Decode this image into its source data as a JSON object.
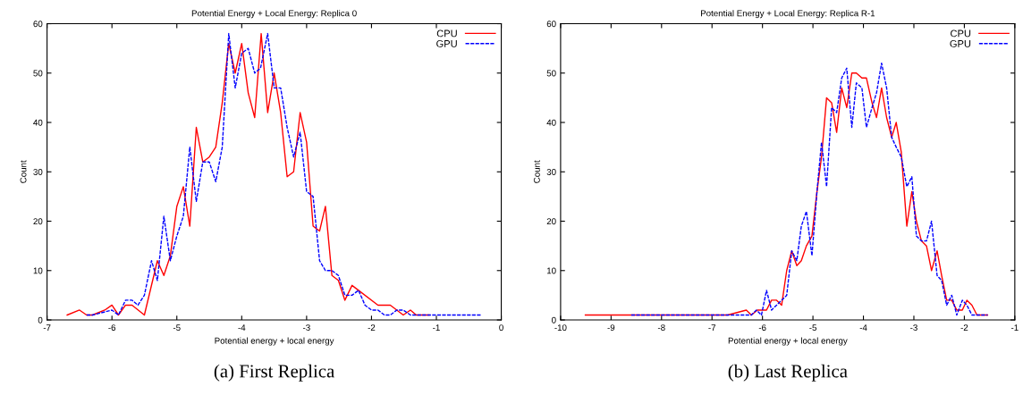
{
  "chart_data": [
    {
      "type": "line",
      "title": "Potential Energy + Local Energy: Replica 0",
      "xlabel": "Potential energy + local energy",
      "ylabel": "Count",
      "xlim": [
        -7,
        0
      ],
      "xticks": [
        -7,
        -6,
        -5,
        -4,
        -3,
        -2,
        -1,
        0
      ],
      "ylim": [
        0,
        60
      ],
      "yticks": [
        0,
        10,
        20,
        30,
        40,
        50,
        60
      ],
      "grid": false,
      "legend": "top right",
      "annotations": [
        "(a) First Replica"
      ],
      "series": [
        {
          "name": "CPU",
          "color": "#ff0000",
          "line_style": "solid",
          "x": [
            -6.69,
            -6.5,
            -6.39,
            -6.3,
            -6.11,
            -6.0,
            -5.9,
            -5.79,
            -5.69,
            -5.5,
            -5.3,
            -5.2,
            -5.1,
            -5.0,
            -4.9,
            -4.8,
            -4.7,
            -4.6,
            -4.5,
            -4.4,
            -4.3,
            -4.2,
            -4.1,
            -4.0,
            -3.9,
            -3.8,
            -3.7,
            -3.6,
            -3.5,
            -3.4,
            -3.3,
            -3.2,
            -3.1,
            -3.0,
            -2.9,
            -2.8,
            -2.71,
            -2.61,
            -2.51,
            -2.41,
            -2.3,
            -2.2,
            -1.9,
            -1.71,
            -1.51,
            -1.4,
            -1.31,
            -1.11
          ],
          "values": [
            1,
            2,
            1,
            1,
            2,
            3,
            1,
            3,
            3,
            1,
            12,
            9,
            13,
            23,
            27,
            19,
            39,
            32,
            33,
            35,
            44,
            56,
            50,
            56,
            46,
            41,
            58,
            42,
            50,
            42,
            29,
            30,
            42,
            36,
            19,
            18,
            23,
            9,
            8,
            4,
            7,
            6,
            3,
            3,
            1,
            2,
            1,
            1
          ]
        },
        {
          "name": "GPU",
          "color": "#0000ff",
          "line_style": "dashed",
          "x": [
            -6.39,
            -6.3,
            -6.0,
            -5.9,
            -5.79,
            -5.69,
            -5.6,
            -5.5,
            -5.39,
            -5.3,
            -5.2,
            -5.1,
            -5.0,
            -4.9,
            -4.8,
            -4.7,
            -4.6,
            -4.5,
            -4.4,
            -4.3,
            -4.2,
            -4.1,
            -4.0,
            -3.9,
            -3.8,
            -3.71,
            -3.6,
            -3.5,
            -3.4,
            -3.3,
            -3.2,
            -3.1,
            -3.0,
            -2.9,
            -2.8,
            -2.71,
            -2.61,
            -2.51,
            -2.41,
            -2.3,
            -2.2,
            -2.1,
            -2.0,
            -1.9,
            -1.8,
            -1.71,
            -1.61,
            -1.51,
            -1.4,
            -1.31,
            -0.31
          ],
          "values": [
            1,
            1,
            2,
            1,
            4,
            4,
            3,
            5,
            12,
            8,
            21,
            12,
            17,
            21,
            35,
            24,
            32,
            32,
            28,
            35,
            58,
            47,
            54,
            55,
            50,
            51,
            58,
            47,
            47,
            39,
            33,
            38,
            26,
            25,
            12,
            10,
            10,
            9,
            5,
            5,
            6,
            3,
            2,
            2,
            1,
            1,
            2,
            2,
            1,
            1,
            1
          ]
        }
      ]
    },
    {
      "type": "line",
      "title": "Potential Energy + Local Energy: Replica R-1",
      "xlabel": "Potential energy + local energy",
      "ylabel": "Count",
      "xlim": [
        -10,
        -1
      ],
      "xticks": [
        -10,
        -9,
        -8,
        -7,
        -6,
        -5,
        -4,
        -3,
        -2,
        -1
      ],
      "ylim": [
        0,
        60
      ],
      "yticks": [
        0,
        10,
        20,
        30,
        40,
        50,
        60
      ],
      "grid": false,
      "legend": "top right",
      "annotations": [
        "(b) Last Replica"
      ],
      "series": [
        {
          "name": "CPU",
          "color": "#ff0000",
          "line_style": "solid",
          "x": [
            -9.51,
            -6.69,
            -6.32,
            -6.22,
            -6.1,
            -5.92,
            -5.82,
            -5.72,
            -5.62,
            -5.52,
            -5.42,
            -5.32,
            -5.23,
            -5.13,
            -5.02,
            -4.92,
            -4.83,
            -4.73,
            -4.63,
            -4.53,
            -4.43,
            -4.33,
            -4.23,
            -4.14,
            -4.03,
            -3.94,
            -3.83,
            -3.74,
            -3.64,
            -3.54,
            -3.44,
            -3.35,
            -3.25,
            -3.14,
            -3.04,
            -2.95,
            -2.85,
            -2.75,
            -2.65,
            -2.54,
            -2.45,
            -2.35,
            -2.25,
            -2.15,
            -2.04,
            -1.95,
            -1.85,
            -1.75,
            -1.54
          ],
          "values": [
            1,
            1,
            2,
            1,
            2,
            2,
            4,
            4,
            3,
            10,
            14,
            11,
            12,
            15,
            17,
            26,
            33,
            45,
            44,
            38,
            47,
            43,
            50,
            50,
            49,
            49,
            44,
            41,
            47,
            41,
            37,
            40,
            34,
            19,
            26,
            20,
            16,
            15,
            10,
            14,
            9,
            4,
            4,
            2,
            2,
            4,
            3,
            1,
            1
          ]
        },
        {
          "name": "GPU",
          "color": "#0000ff",
          "line_style": "dashed",
          "x": [
            -8.6,
            -6.22,
            -6.12,
            -6.02,
            -5.92,
            -5.82,
            -5.72,
            -5.62,
            -5.52,
            -5.42,
            -5.32,
            -5.23,
            -5.13,
            -5.02,
            -4.92,
            -4.83,
            -4.73,
            -4.63,
            -4.53,
            -4.43,
            -4.33,
            -4.23,
            -4.14,
            -4.03,
            -3.94,
            -3.83,
            -3.74,
            -3.64,
            -3.54,
            -3.44,
            -3.35,
            -3.25,
            -3.14,
            -3.04,
            -2.95,
            -2.85,
            -2.75,
            -2.65,
            -2.54,
            -2.45,
            -2.35,
            -2.25,
            -2.15,
            -2.04,
            -1.95,
            -1.85,
            -1.54
          ],
          "values": [
            1,
            1,
            2,
            1,
            6,
            2,
            3,
            4,
            5,
            14,
            12,
            19,
            22,
            13,
            26,
            36,
            27,
            43,
            42,
            49,
            51,
            39,
            48,
            47,
            39,
            43,
            46,
            52,
            47,
            37,
            35,
            33,
            27,
            29,
            17,
            16,
            16,
            20,
            9,
            8,
            3,
            5,
            1,
            4,
            3,
            1,
            1
          ]
        }
      ]
    }
  ]
}
